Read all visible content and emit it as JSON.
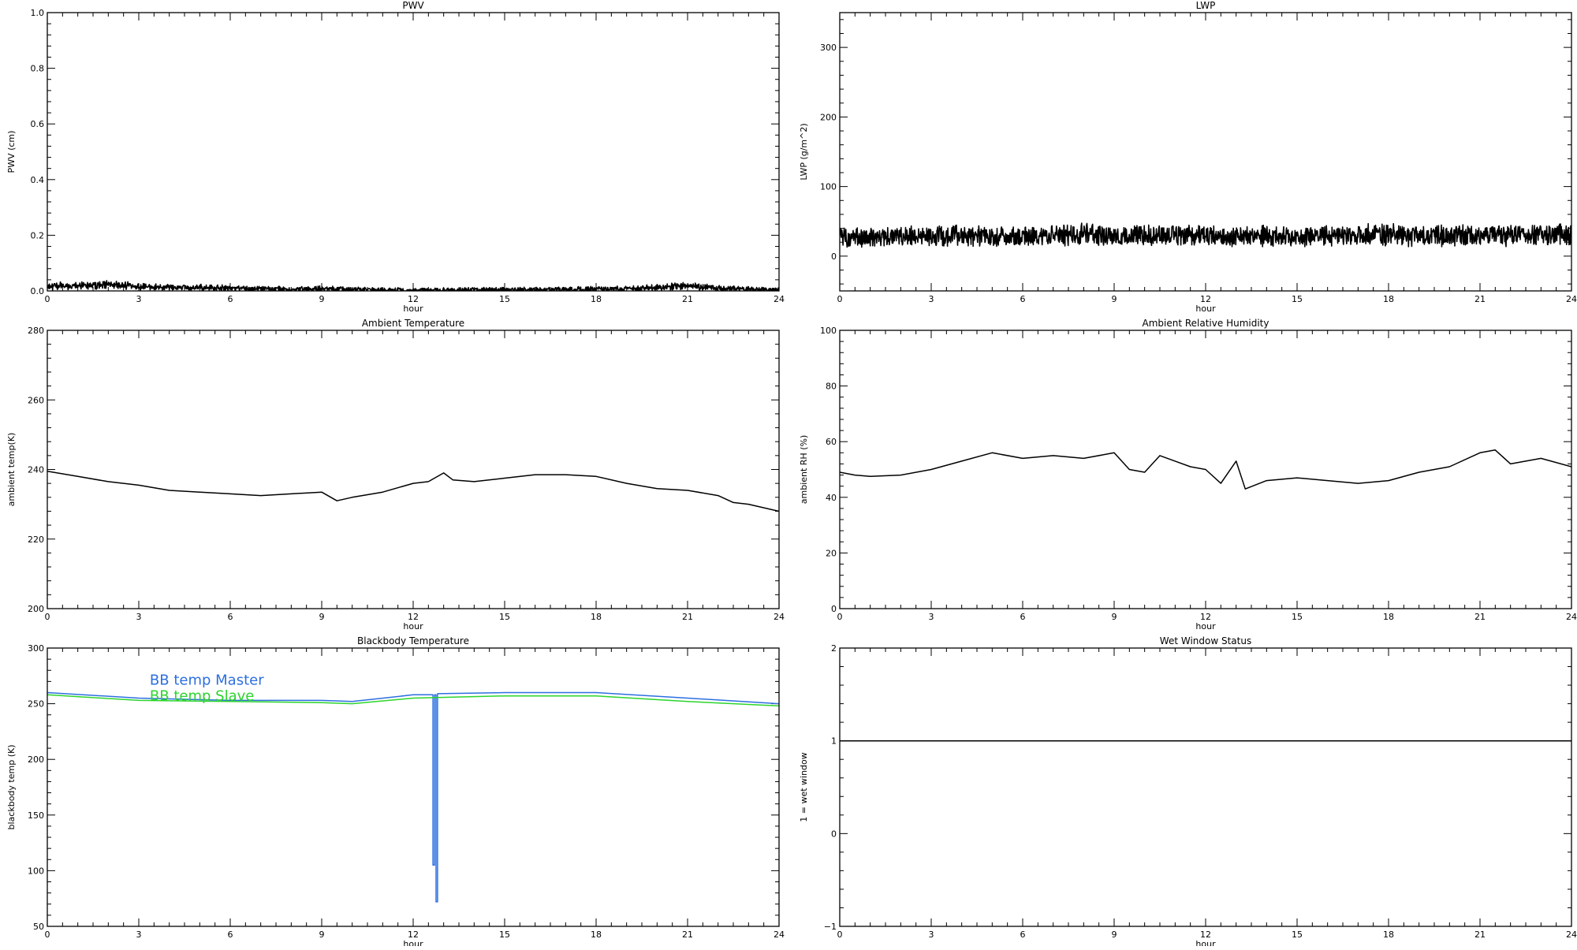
{
  "chart_data": [
    {
      "id": "pwv",
      "type": "line",
      "title": "PWV",
      "xlabel": "hour",
      "ylabel": "PWV (cm)",
      "xlim": [
        0,
        24
      ],
      "ylim": [
        0,
        1.0
      ],
      "xticks": [
        0,
        3,
        6,
        9,
        12,
        15,
        18,
        21,
        24
      ],
      "xtick_labels": [
        "0",
        "3",
        "6",
        "9",
        "12",
        "15",
        "18",
        "21",
        "24"
      ],
      "yticks": [
        0,
        0.2,
        0.4,
        0.6,
        0.8,
        1.0
      ],
      "ytick_labels": [
        "0.0",
        "0.2",
        "0.4",
        "0.6",
        "0.8",
        "1.0"
      ],
      "grid": false,
      "series": [
        {
          "color": "#000000",
          "noisy": true,
          "x": [
            0,
            1,
            2,
            3,
            4,
            5,
            6,
            7,
            8,
            9,
            10,
            11,
            12,
            13,
            14,
            15,
            16,
            17,
            18,
            19,
            20,
            21,
            22,
            23,
            24
          ],
          "y": [
            0.015,
            0.02,
            0.022,
            0.015,
            0.012,
            0.012,
            0.01,
            0.008,
            0.006,
            0.007,
            0.005,
            0.003,
            0.002,
            0.002,
            0.004,
            0.004,
            0.004,
            0.006,
            0.006,
            0.008,
            0.012,
            0.018,
            0.01,
            0.006,
            0.004
          ]
        }
      ]
    },
    {
      "id": "lwp",
      "type": "line",
      "title": "LWP",
      "xlabel": "hour",
      "ylabel": "LWP (g/m^2)",
      "xlim": [
        0,
        24
      ],
      "ylim": [
        -50,
        350
      ],
      "xticks": [
        0,
        3,
        6,
        9,
        12,
        15,
        18,
        21,
        24
      ],
      "xtick_labels": [
        "0",
        "3",
        "6",
        "9",
        "12",
        "15",
        "18",
        "21",
        "24"
      ],
      "yticks": [
        0,
        100,
        200,
        300
      ],
      "ytick_labels": [
        "0",
        "100",
        "200",
        "300"
      ],
      "grid": false,
      "series": [
        {
          "color": "#000000",
          "noisy": true,
          "x": [
            0,
            1,
            2,
            3,
            4,
            5,
            6,
            7,
            8,
            9,
            10,
            11,
            12,
            13,
            14,
            15,
            16,
            17,
            18,
            19,
            20,
            21,
            22,
            23,
            24
          ],
          "y": [
            28,
            27,
            28,
            29,
            30,
            28,
            29,
            30,
            31,
            30,
            31,
            30,
            29,
            28,
            29,
            28,
            29,
            30,
            31,
            30,
            30,
            29,
            30,
            31,
            31
          ]
        }
      ]
    },
    {
      "id": "ambient-temperature",
      "type": "line",
      "title": "Ambient Temperature",
      "xlabel": "hour",
      "ylabel": "ambient temp(K)",
      "xlim": [
        0,
        24
      ],
      "ylim": [
        200,
        280
      ],
      "xticks": [
        0,
        3,
        6,
        9,
        12,
        15,
        18,
        21,
        24
      ],
      "xtick_labels": [
        "0",
        "3",
        "6",
        "9",
        "12",
        "15",
        "18",
        "21",
        "24"
      ],
      "yticks": [
        200,
        220,
        240,
        260,
        280
      ],
      "ytick_labels": [
        "200",
        "220",
        "240",
        "260",
        "280"
      ],
      "grid": false,
      "series": [
        {
          "color": "#000000",
          "noisy": false,
          "x": [
            0,
            1,
            2,
            3,
            4,
            5,
            6,
            7,
            8,
            9,
            9.5,
            10,
            11,
            12,
            12.5,
            13,
            13.3,
            14,
            15,
            16,
            17,
            18,
            19,
            20,
            21,
            22,
            22.5,
            23,
            24
          ],
          "y": [
            239.5,
            238,
            236.5,
            235.5,
            234,
            233.5,
            233,
            232.5,
            233,
            233.5,
            231,
            232,
            233.5,
            236,
            236.5,
            239,
            237,
            236.5,
            237.5,
            238.5,
            238.5,
            238,
            236,
            234.5,
            234,
            232.5,
            230.5,
            230,
            228
          ]
        }
      ]
    },
    {
      "id": "ambient-relative-humidity",
      "type": "line",
      "title": "Ambient Relative Humidity",
      "xlabel": "hour",
      "ylabel": "ambient RH (%)",
      "xlim": [
        0,
        24
      ],
      "ylim": [
        0,
        100
      ],
      "xticks": [
        0,
        3,
        6,
        9,
        12,
        15,
        18,
        21,
        24
      ],
      "xtick_labels": [
        "0",
        "3",
        "6",
        "9",
        "12",
        "15",
        "18",
        "21",
        "24"
      ],
      "yticks": [
        0,
        20,
        40,
        60,
        80,
        100
      ],
      "ytick_labels": [
        "0",
        "20",
        "40",
        "60",
        "80",
        "100"
      ],
      "grid": false,
      "series": [
        {
          "color": "#000000",
          "noisy": false,
          "x": [
            0,
            0.5,
            1,
            2,
            3,
            4,
            5,
            6,
            7,
            8,
            9,
            9.5,
            10,
            10.5,
            11,
            11.5,
            12,
            12.5,
            13,
            13.3,
            14,
            15,
            16,
            17,
            18,
            19,
            20,
            21,
            21.5,
            22,
            23,
            24
          ],
          "y": [
            49,
            48,
            47.5,
            48,
            50,
            53,
            56,
            54,
            55,
            54,
            56,
            50,
            49,
            55,
            53,
            51,
            50,
            45,
            53,
            43,
            46,
            47,
            46,
            45,
            46,
            49,
            51,
            56,
            57,
            52,
            54,
            51
          ]
        }
      ]
    },
    {
      "id": "blackbody-temperature",
      "type": "line",
      "title": "Blackbody Temperature",
      "xlabel": "hour",
      "ylabel": "blackbody temp (K)",
      "xlim": [
        0,
        24
      ],
      "ylim": [
        50,
        300
      ],
      "xticks": [
        0,
        3,
        6,
        9,
        12,
        15,
        18,
        21,
        24
      ],
      "xtick_labels": [
        "0",
        "3",
        "6",
        "9",
        "12",
        "15",
        "18",
        "21",
        "24"
      ],
      "yticks": [
        50,
        100,
        150,
        200,
        250,
        300
      ],
      "ytick_labels": [
        "50",
        "100",
        "150",
        "200",
        "250",
        "300"
      ],
      "grid": false,
      "legend": "top-left",
      "series": [
        {
          "name": "BB temp Master",
          "color": "#2d6fe0",
          "noisy": false,
          "x": [
            0,
            3,
            6,
            9,
            10,
            12,
            12.65,
            12.65,
            12.7,
            12.7,
            12.75,
            12.75,
            12.8,
            12.8,
            15,
            18,
            21,
            24
          ],
          "y": [
            260,
            255,
            253,
            253,
            252,
            258,
            258,
            105,
            105,
            258,
            258,
            72,
            72,
            259,
            260,
            260,
            255,
            250
          ],
          "label_y": 267
        },
        {
          "name": "BB temp Slave",
          "color": "#2cd42c",
          "noisy": false,
          "x": [
            0,
            3,
            6,
            9,
            10,
            12,
            15,
            18,
            21,
            24
          ],
          "y": [
            258,
            253,
            252,
            251,
            250,
            255,
            257,
            257,
            252,
            248
          ],
          "label_y": 253
        }
      ]
    },
    {
      "id": "wet-window-status",
      "type": "line",
      "title": "Wet Window Status",
      "xlabel": "hour",
      "ylabel": "1 = wet window",
      "xlim": [
        0,
        24
      ],
      "ylim": [
        -1,
        2
      ],
      "xticks": [
        0,
        3,
        6,
        9,
        12,
        15,
        18,
        21,
        24
      ],
      "xtick_labels": [
        "0",
        "3",
        "6",
        "9",
        "12",
        "15",
        "18",
        "21",
        "24"
      ],
      "yticks": [
        -1,
        0,
        1,
        2
      ],
      "ytick_labels": [
        "−1",
        "0",
        "1",
        "2"
      ],
      "grid": false,
      "series": [
        {
          "color": "#000000",
          "noisy": false,
          "x": [
            0,
            24
          ],
          "y": [
            1,
            1
          ]
        }
      ]
    }
  ]
}
